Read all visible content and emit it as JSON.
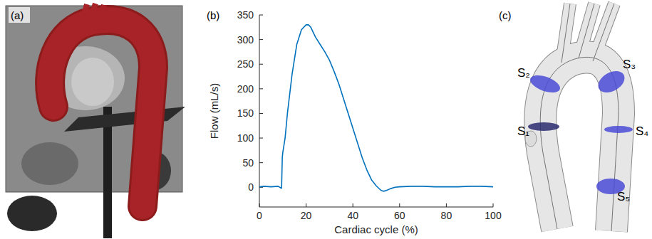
{
  "chart_data": {
    "type": "line",
    "panel_label": "(b)",
    "xlabel": "Cardiac cycle (%)",
    "ylabel": "Flow (mL/s)",
    "x": [
      0,
      2,
      5,
      8,
      9.5,
      9.8,
      10,
      11,
      12,
      14,
      16,
      18,
      20,
      21,
      22,
      24,
      26,
      28,
      30,
      32,
      34,
      36,
      38,
      40,
      42,
      44,
      46,
      48,
      50,
      52,
      53,
      54,
      56,
      58,
      60,
      65,
      70,
      75,
      80,
      85,
      90,
      95,
      100
    ],
    "values": [
      1,
      2,
      1,
      2,
      -2,
      60,
      70,
      100,
      150,
      230,
      290,
      320,
      330,
      330,
      325,
      305,
      290,
      275,
      258,
      235,
      210,
      180,
      150,
      120,
      90,
      60,
      35,
      15,
      3,
      -6,
      -8,
      -7,
      -3,
      0,
      1,
      2,
      2,
      1,
      1,
      1,
      2,
      2,
      1
    ],
    "color": "#0072bd",
    "xlim": [
      0,
      100
    ],
    "ylim": [
      -40,
      350
    ],
    "xticks": [
      0,
      20,
      40,
      60,
      80,
      100
    ],
    "yticks": [
      0,
      50,
      100,
      150,
      200,
      250,
      300,
      350
    ]
  },
  "panels": {
    "a": {
      "label": "(a)"
    },
    "c": {
      "label": "(c)",
      "sections": [
        "S₁",
        "S₂",
        "S₃",
        "S₄",
        "S₅"
      ]
    }
  }
}
